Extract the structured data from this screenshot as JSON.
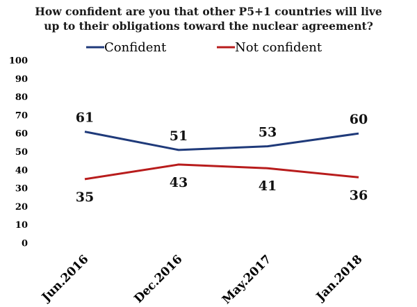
{
  "chart_data": {
    "type": "line",
    "title": "How confident are you that other P5+1 countries will live up to their obligations toward the nuclear agreement?",
    "title_lines": [
      "How confident are you that other P5+1 countries will live",
      "up to their obligations toward the nuclear agreement?"
    ],
    "categories": [
      "Jun.2016",
      "Dec.2016",
      "May.2017",
      "Jan.2018"
    ],
    "series": [
      {
        "name": "Confident",
        "color": "#1f3a7a",
        "values": [
          61,
          51,
          53,
          60
        ]
      },
      {
        "name": "Not confident",
        "color": "#b81c1c",
        "values": [
          35,
          43,
          41,
          36
        ]
      }
    ],
    "ylim": [
      0,
      100
    ],
    "yticks": [
      0,
      10,
      20,
      30,
      40,
      50,
      60,
      70,
      80,
      90,
      100
    ],
    "grid": false,
    "legend_position": "top",
    "xlabel": "",
    "ylabel": ""
  }
}
